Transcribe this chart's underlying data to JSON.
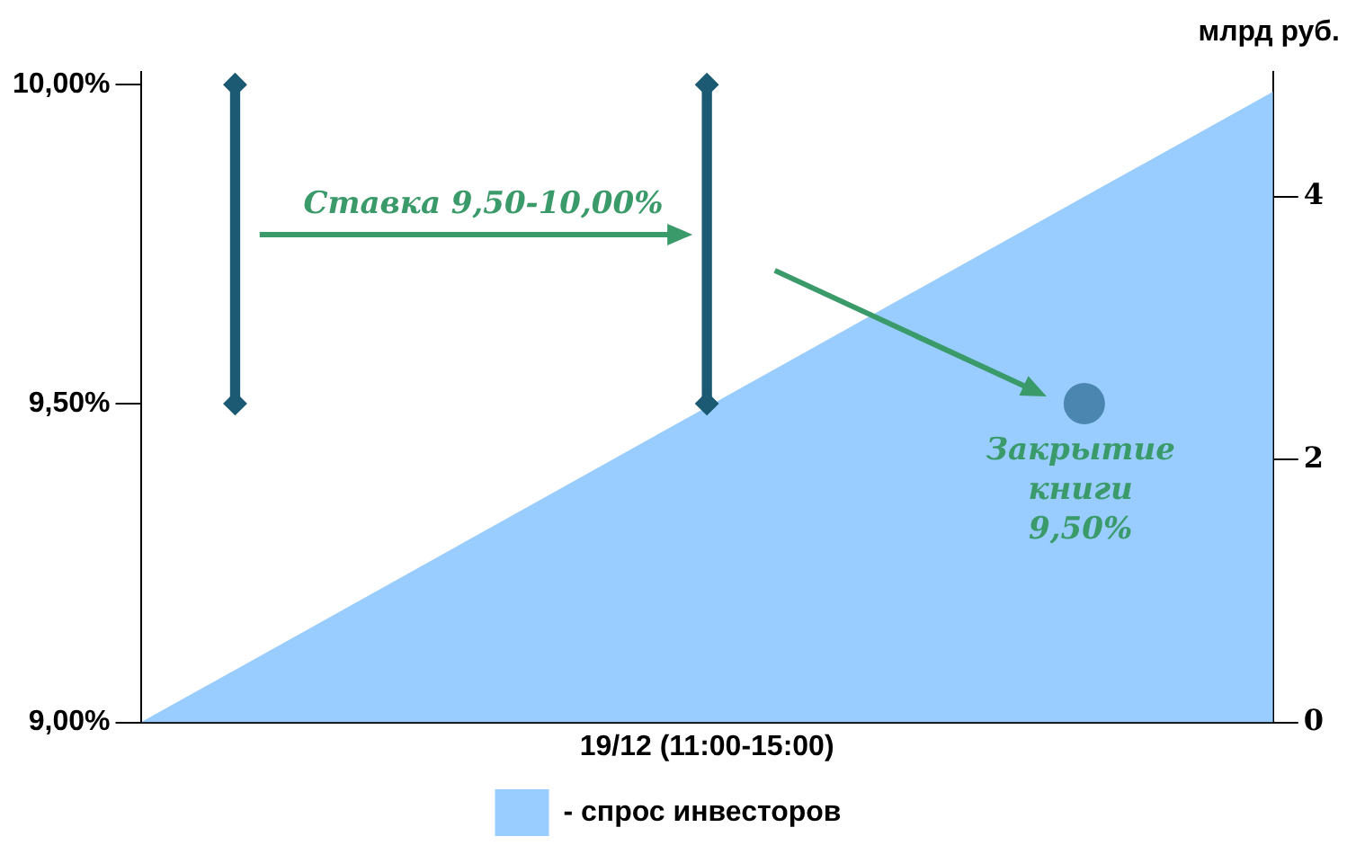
{
  "chart_data": {
    "type": "area",
    "xlabel": "19/12 (11:00-15:00)",
    "y2label": "млрд руб.",
    "categories": [
      null,
      null,
      null,
      null,
      null,
      null,
      null,
      null,
      null,
      null,
      null,
      null,
      null
    ],
    "series": [
      {
        "name": "- спрос инвесторов",
        "color": "#99ccff",
        "axis": "y2",
        "values": [
          0,
          0.4,
          0.8,
          1.2,
          1.6,
          2.0,
          2.4,
          2.8,
          3.2,
          3.6,
          4.0,
          4.4,
          4.8
        ]
      },
      {
        "type": "scatter",
        "color": "#1b5a72",
        "marker": "diamond",
        "values": [
          null,
          10,
          null,
          null,
          null,
          null,
          10,
          null,
          null,
          null,
          null,
          null,
          null
        ]
      },
      {
        "type": "scatter",
        "color": "#1b5a72",
        "marker": "diamond",
        "values": [
          null,
          9.5,
          null,
          null,
          null,
          null,
          9.5,
          null,
          null,
          null,
          null,
          null,
          null
        ]
      },
      {
        "type": "bar",
        "color": "#1b5a72",
        "base": [
          null,
          9.5,
          null,
          null,
          null,
          null,
          9.5,
          null,
          null,
          null,
          null,
          null,
          null
        ],
        "values": [
          null,
          0.5,
          null,
          null,
          null,
          null,
          0.5,
          null,
          null,
          null,
          null,
          null,
          null
        ]
      },
      {
        "type": "scatter",
        "color": "#4a86b0",
        "marker": "circle",
        "values": [
          null,
          null,
          null,
          null,
          null,
          null,
          null,
          null,
          null,
          null,
          9.5,
          null,
          null
        ]
      }
    ],
    "ylim": [
      9,
      10.02
    ],
    "yticks": [
      {
        "value": 9,
        "label": "9,00%"
      },
      {
        "value": 9.5,
        "label": "9,50%"
      },
      {
        "value": 10,
        "label": "10,00%"
      }
    ],
    "y2lim": [
      0,
      4.95
    ],
    "y2ticks": [
      0,
      2,
      4
    ],
    "annotations": [
      "Ставка 9,50-10,00%",
      "Закрытие книги 9,50%"
    ],
    "grid": false,
    "legend": "bottom"
  }
}
